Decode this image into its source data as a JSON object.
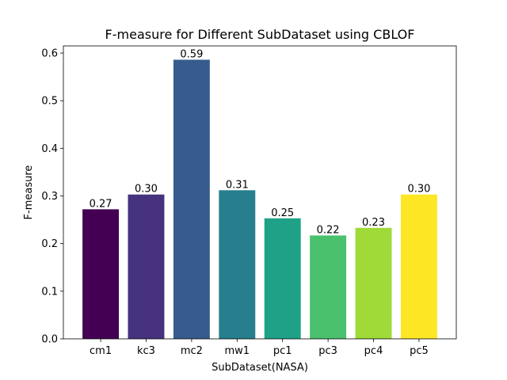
{
  "chart_data": {
    "type": "bar",
    "title": "F-measure for Different SubDataset using CBLOF",
    "xlabel": "SubDataset(NASA)",
    "ylabel": "F-measure",
    "categories": [
      "cm1",
      "kc3",
      "mc2",
      "mw1",
      "pc1",
      "pc3",
      "pc4",
      "pc5"
    ],
    "values": [
      0.272,
      0.303,
      0.586,
      0.312,
      0.253,
      0.217,
      0.233,
      0.303
    ],
    "value_labels": [
      "0.27",
      "0.30",
      "0.59",
      "0.31",
      "0.25",
      "0.22",
      "0.23",
      "0.30"
    ],
    "bar_colors": [
      "#440154",
      "#46327e",
      "#365c8d",
      "#277f8e",
      "#1fa187",
      "#4ac16d",
      "#a0da39",
      "#fde725"
    ],
    "ylim": [
      0,
      0.615
    ],
    "yticks": [
      0.0,
      0.1,
      0.2,
      0.3,
      0.4,
      0.5,
      0.6
    ],
    "ytick_labels": [
      "0.0",
      "0.1",
      "0.2",
      "0.3",
      "0.4",
      "0.5",
      "0.6"
    ],
    "grid": false,
    "legend": "none"
  }
}
